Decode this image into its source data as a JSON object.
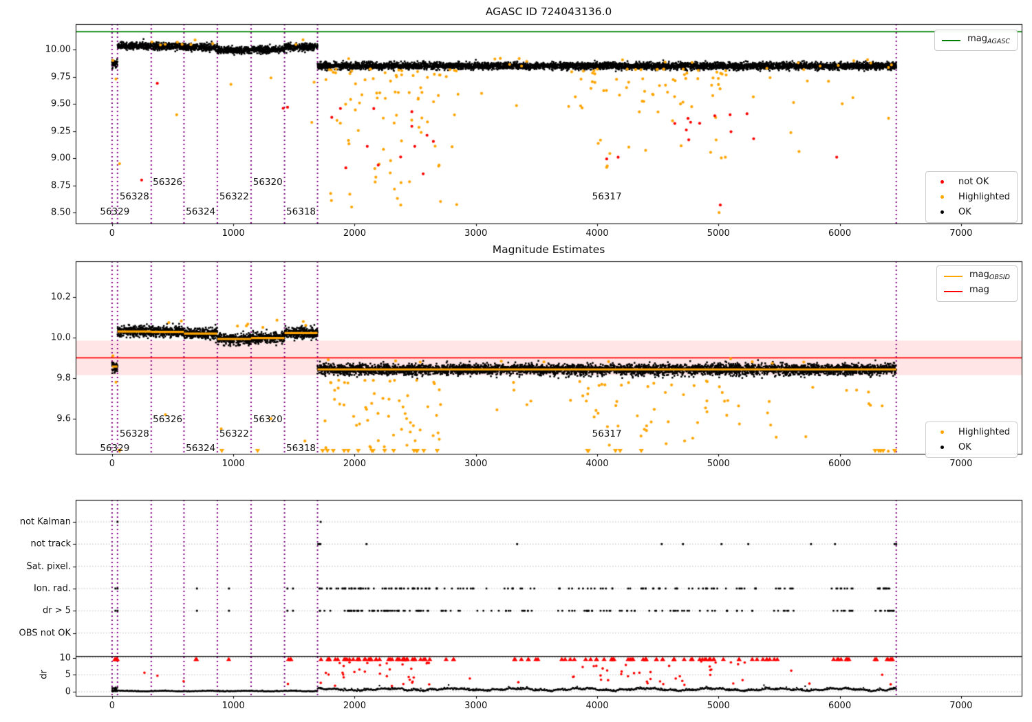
{
  "colors": {
    "ok": "#000000",
    "highlighted": "#ffa500",
    "not_ok": "#ff0000",
    "mag_agasc": "#008000",
    "mag": "#ff0000",
    "mag_obsid": "#ffa500",
    "mag_band": "rgba(255,0,0,0.10)",
    "obsid_boundary": "#800080",
    "grid": "#bbbbbb",
    "axis": "#000000"
  },
  "obsids": [
    {
      "id": "56329",
      "start": 0,
      "end": 45,
      "mag_obs": 9.87,
      "mag_est": 9.857,
      "label_level": 0
    },
    {
      "id": "56328",
      "start": 45,
      "end": 323,
      "mag_obs": 10.035,
      "mag_est": 10.03,
      "label_level": 1
    },
    {
      "id": "56326",
      "start": 323,
      "end": 593,
      "mag_obs": 10.03,
      "mag_est": 10.028,
      "label_level": 2
    },
    {
      "id": "56324",
      "start": 593,
      "end": 868,
      "mag_obs": 10.02,
      "mag_est": 10.02,
      "label_level": 0
    },
    {
      "id": "56322",
      "start": 868,
      "end": 1146,
      "mag_obs": 9.995,
      "mag_est": 9.993,
      "label_level": 1
    },
    {
      "id": "56320",
      "start": 1146,
      "end": 1422,
      "mag_obs": 10.0,
      "mag_est": 9.998,
      "label_level": 2
    },
    {
      "id": "56318",
      "start": 1422,
      "end": 1694,
      "mag_obs": 10.025,
      "mag_est": 10.022,
      "label_level": 0
    },
    {
      "id": "56317",
      "start": 1694,
      "end": 6466,
      "mag_obs": 9.85,
      "mag_est": 9.843,
      "label_level": 1
    }
  ],
  "obsid_boundaries": [
    0,
    45,
    323,
    593,
    868,
    1146,
    1422,
    1694,
    6466
  ],
  "chart_data": [
    {
      "type": "scatter",
      "title": "AGASC ID 724043136.0",
      "xlim": [
        -300,
        7500
      ],
      "ylim": [
        8.4,
        10.235
      ],
      "xticks": [
        0,
        1000,
        2000,
        3000,
        4000,
        5000,
        6000,
        7000
      ],
      "xtick_labels": [
        "0",
        "1000",
        "2000",
        "3000",
        "4000",
        "5000",
        "6000",
        "7000"
      ],
      "yticks": [
        8.5,
        8.75,
        9.0,
        9.25,
        9.5,
        9.75,
        10.0
      ],
      "ytick_labels": [
        "8.50",
        "8.75",
        "9.00",
        "9.25",
        "9.50",
        "9.75",
        "10.00"
      ],
      "grid": false,
      "mag_agasc": 10.165,
      "legend_line": {
        "text": "mag",
        "sub": "AGASC"
      },
      "legend_markers": {
        "entries": [
          {
            "label": "not OK",
            "color": "#ff0000"
          },
          {
            "label": "Highlighted",
            "color": "#ffa500"
          },
          {
            "label": "OK",
            "color": "#000000"
          }
        ]
      },
      "band_sigma": 0.016,
      "label_levels": [
        8.51,
        8.645,
        8.78
      ],
      "highlighted_clusters": [
        {
          "x0": 1750,
          "x1": 2870,
          "n": 85,
          "top": 9.82,
          "bot": 8.55,
          "pow": 2.2
        },
        {
          "x0": 3850,
          "x1": 5150,
          "n": 72,
          "top": 9.82,
          "bot": 8.9,
          "pow": 2.0
        },
        {
          "x0": 2870,
          "x1": 3850,
          "n": 7,
          "top": 9.87,
          "bot": 9.45,
          "pow": 1.5
        },
        {
          "x0": 5150,
          "x1": 6466,
          "n": 16,
          "top": 9.86,
          "bot": 9.0,
          "pow": 2.2
        },
        {
          "x0": 1750,
          "x1": 6400,
          "n": 12,
          "top": 9.92,
          "bot": 9.87,
          "pow": 1.0
        },
        {
          "x0": 60,
          "x1": 1694,
          "n": 10,
          "top": 10.09,
          "bot": 10.04,
          "pow": 1.0
        }
      ],
      "highlighted_points": [
        [
          7,
          9.9
        ],
        [
          32,
          9.73
        ],
        [
          62,
          8.95
        ],
        [
          533,
          9.4
        ],
        [
          980,
          9.68
        ],
        [
          1310,
          9.74
        ],
        [
          1647,
          9.33
        ],
        [
          1666,
          9.7
        ],
        [
          2380,
          8.57
        ],
        [
          5005,
          8.5
        ]
      ],
      "not_ok_clusters": [
        {
          "x0": 1800,
          "x1": 2750,
          "n": 13,
          "top": 9.5,
          "bot": 8.85,
          "pow": 1.2
        },
        {
          "x0": 3900,
          "x1": 5250,
          "n": 10,
          "top": 9.45,
          "bot": 8.95,
          "pow": 1.2
        }
      ],
      "not_ok_points": [
        [
          244,
          8.8
        ],
        [
          373,
          9.69
        ],
        [
          1411,
          9.46
        ],
        [
          1447,
          9.47
        ],
        [
          5015,
          8.57
        ],
        [
          5975,
          9.01
        ],
        [
          4640,
          9.32
        ],
        [
          4755,
          9.17
        ],
        [
          5290,
          9.18
        ]
      ]
    },
    {
      "type": "scatter",
      "title": "Magnitude Estimates",
      "xlim": [
        -300,
        7500
      ],
      "ylim": [
        9.427,
        10.376
      ],
      "xticks": [
        0,
        1000,
        2000,
        3000,
        4000,
        5000,
        6000,
        7000
      ],
      "xtick_labels": [
        "0",
        "1000",
        "2000",
        "3000",
        "4000",
        "5000",
        "6000",
        "7000"
      ],
      "yticks": [
        9.6,
        9.8,
        10.0,
        10.2
      ],
      "ytick_labels": [
        "9.6",
        "9.8",
        "10.0",
        "10.2"
      ],
      "grid": false,
      "mag": 9.9,
      "mag_err": 0.085,
      "legend_lines": {
        "entries": [
          {
            "text": "mag",
            "sub": "OBSID",
            "color": "#ffa500"
          },
          {
            "text": "mag",
            "sub": "",
            "color": "#ff0000"
          }
        ]
      },
      "legend_markers": {
        "entries": [
          {
            "label": "Highlighted",
            "color": "#ffa500"
          },
          {
            "label": "OK",
            "color": "#000000"
          }
        ]
      },
      "band_sigma": 0.013,
      "label_levels": [
        9.455,
        9.525,
        9.597
      ],
      "highlighted_clusters": [
        {
          "x0": 1750,
          "x1": 2720,
          "n": 55,
          "top": 9.79,
          "bot": 9.45,
          "pow": 1.6
        },
        {
          "x0": 3850,
          "x1": 5150,
          "n": 45,
          "top": 9.79,
          "bot": 9.45,
          "pow": 1.6
        },
        {
          "x0": 2720,
          "x1": 3850,
          "n": 6,
          "top": 9.78,
          "bot": 9.55,
          "pow": 1.3
        },
        {
          "x0": 5150,
          "x1": 6466,
          "n": 14,
          "top": 9.77,
          "bot": 9.48,
          "pow": 1.5
        },
        {
          "x0": 1750,
          "x1": 6400,
          "n": 10,
          "top": 9.905,
          "bot": 9.87,
          "pow": 1.0
        },
        {
          "x0": 60,
          "x1": 1694,
          "n": 9,
          "top": 10.09,
          "bot": 10.05,
          "pow": 1.0
        }
      ],
      "highlighted_points": [
        [
          7,
          9.91
        ],
        [
          32,
          9.78
        ],
        [
          440,
          9.62
        ],
        [
          900,
          9.55
        ],
        [
          1310,
          9.6
        ],
        [
          1590,
          9.49
        ],
        [
          4100,
          9.47
        ],
        [
          6400,
          9.44
        ]
      ],
      "clip_triangle_clusters": [
        [
          1730,
          2700,
          15
        ],
        [
          3900,
          4550,
          5
        ],
        [
          6280,
          6466,
          6
        ]
      ],
      "clip_triangle_points": [
        62,
        905,
        1200
      ]
    },
    {
      "type": "scatter",
      "title": "",
      "xlim": [
        -300,
        7500
      ],
      "xticks": [
        0,
        1000,
        2000,
        3000,
        4000,
        5000,
        6000,
        7000
      ],
      "xtick_labels": [
        "0",
        "1000",
        "2000",
        "3000",
        "4000",
        "5000",
        "6000",
        "7000"
      ],
      "rows": [
        {
          "label": "not Kalman",
          "points": [
            45,
            1720
          ],
          "clusters": []
        },
        {
          "label": "not track",
          "points": [
            1700,
            1709,
            1718,
            2098,
            3340,
            4532,
            4707,
            5025,
            5246,
            5763,
            5961,
            6452,
            6466
          ],
          "clusters": []
        },
        {
          "label": "Sat. pixel.",
          "points": [],
          "clusters": []
        },
        {
          "label": "Ion. rad.",
          "points": [
            28,
            45,
            700,
            964,
            1446,
            1492
          ],
          "clusters": [
            [
              1700,
              2620,
              55
            ],
            [
              2660,
              3560,
              22
            ],
            [
              3660,
              5330,
              50
            ],
            [
              5430,
              5620,
              7
            ],
            [
              5930,
              6110,
              9
            ],
            [
              6290,
              6466,
              11
            ]
          ]
        },
        {
          "label": "dr > 5",
          "points": [
            28,
            45,
            700,
            964,
            1446,
            1492
          ],
          "clusters": [
            [
              1700,
              2620,
              55
            ],
            [
              2660,
              3560,
              22
            ],
            [
              3660,
              5330,
              50
            ],
            [
              5430,
              5620,
              7
            ],
            [
              5930,
              6110,
              9
            ],
            [
              6290,
              6466,
              11
            ]
          ]
        },
        {
          "label": "OBS not OK",
          "points": [],
          "clusters": []
        }
      ],
      "dr_axis": {
        "label": "dr",
        "ticks": [
          0,
          5,
          10
        ],
        "tick_labels": [
          "0",
          "5",
          "10"
        ],
        "limit_line": 10.4,
        "red_clip_clusters": [
          [
            0,
            45,
            5
          ],
          [
            690,
            700,
            2
          ],
          [
            962,
            966,
            1
          ],
          [
            1444,
            1494,
            3
          ],
          [
            1700,
            2820,
            48
          ],
          [
            3290,
            3520,
            7
          ],
          [
            3650,
            5520,
            52
          ],
          [
            5930,
            6110,
            8
          ],
          [
            6290,
            6466,
            9
          ]
        ],
        "red_clusters": [
          {
            "x0": 1700,
            "x1": 2620,
            "n": 32,
            "top": 9.3,
            "bot": 1.6
          },
          {
            "x0": 3800,
            "x1": 5250,
            "n": 38,
            "top": 9.0,
            "bot": 1.8
          }
        ],
        "red_points": [
          [
            267,
            5.6
          ],
          [
            374,
            4.7
          ],
          [
            590,
            3.1
          ],
          [
            1450,
            2.3
          ],
          [
            2950,
            3.9
          ],
          [
            3350,
            2.8
          ],
          [
            5600,
            6.2
          ],
          [
            5750,
            2.4
          ],
          [
            6350,
            5.0
          ],
          [
            6420,
            2.2
          ]
        ],
        "trace": {
          "x0": 0,
          "x1": 6466,
          "step": 5,
          "split": 1694
        }
      }
    }
  ]
}
